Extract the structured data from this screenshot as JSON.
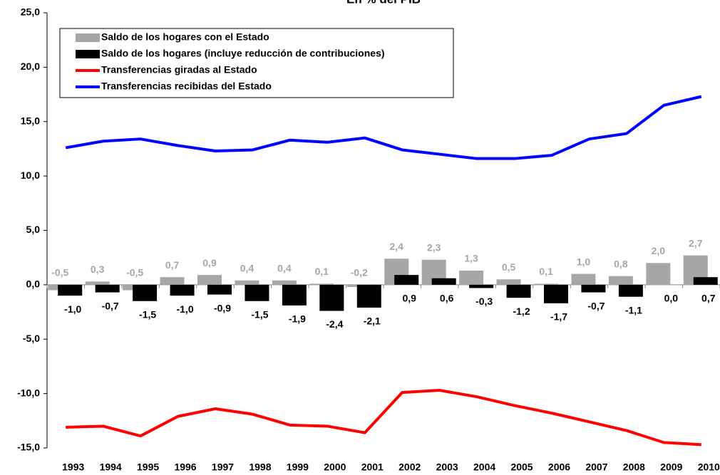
{
  "chart_data": {
    "type": "combo",
    "title": "En % del PIB",
    "categories": [
      "1993",
      "1994",
      "1995",
      "1996",
      "1997",
      "1998",
      "1999",
      "2000",
      "2001",
      "2002",
      "2003",
      "2004",
      "2005",
      "2006",
      "2007",
      "2008",
      "2009",
      "2010"
    ],
    "series": [
      {
        "name": "Saldo de los hogares con el Estado",
        "type": "bar",
        "color": "#a6a6a6",
        "values": [
          -0.5,
          0.3,
          -0.5,
          0.7,
          0.9,
          0.4,
          0.4,
          0.1,
          -0.2,
          2.4,
          2.3,
          1.3,
          0.5,
          0.1,
          1.0,
          0.8,
          2.0,
          2.7
        ],
        "value_labels": [
          "-0,5",
          "0,3",
          "-0,5",
          "0,7",
          "0,9",
          "0,4",
          "0,4",
          "0,1",
          "-0,2",
          "2,4",
          "2,3",
          "1,3",
          "0,5",
          "0,1",
          "1,0",
          "0,8",
          "2,0",
          "2,7"
        ]
      },
      {
        "name": "Saldo de los hogares (incluye reducción de contribuciones)",
        "type": "bar",
        "color": "#000000",
        "values": [
          -1.0,
          -0.7,
          -1.5,
          -1.0,
          -0.9,
          -1.5,
          -1.9,
          -2.4,
          -2.1,
          0.9,
          0.6,
          -0.3,
          -1.2,
          -1.7,
          -0.7,
          -1.1,
          0.0,
          0.7
        ],
        "value_labels": [
          "-1,0",
          "-0,7",
          "-1,5",
          "-1,0",
          "-0,9",
          "-1,5",
          "-1,9",
          "-2,4",
          "-2,1",
          "0,9",
          "0,6",
          "-0,3",
          "-1,2",
          "-1,7",
          "-0,7",
          "-1,1",
          "0,0",
          "0,7"
        ]
      },
      {
        "name": "Transferencias giradas al Estado",
        "type": "line",
        "color": "#ff0000",
        "values": [
          -13.1,
          -13.0,
          -13.9,
          -12.1,
          -11.4,
          -11.9,
          -12.9,
          -13.0,
          -13.6,
          -9.9,
          -9.7,
          -10.3,
          -11.1,
          -11.8,
          -12.6,
          -13.4,
          -14.5,
          -14.7
        ]
      },
      {
        "name": "Transferencias recibidas del Estado",
        "type": "line",
        "color": "#0000ff",
        "values": [
          12.6,
          13.2,
          13.4,
          12.8,
          12.3,
          12.4,
          13.3,
          13.1,
          13.5,
          12.4,
          12.0,
          11.6,
          11.6,
          11.9,
          13.4,
          13.9,
          16.5,
          17.3
        ]
      }
    ],
    "ylim": [
      -15,
      25
    ],
    "yticks": [
      {
        "value": -15,
        "label": "-15,0"
      },
      {
        "value": -10,
        "label": "-10,0"
      },
      {
        "value": -5,
        "label": "-5,0"
      },
      {
        "value": 0,
        "label": "0,0"
      },
      {
        "value": 5,
        "label": "5,0"
      },
      {
        "value": 10,
        "label": "10,0"
      },
      {
        "value": 15,
        "label": "15,0"
      },
      {
        "value": 20,
        "label": "20,0"
      },
      {
        "value": 25,
        "label": "25,0"
      }
    ],
    "legend": "upper left",
    "grid": false
  }
}
